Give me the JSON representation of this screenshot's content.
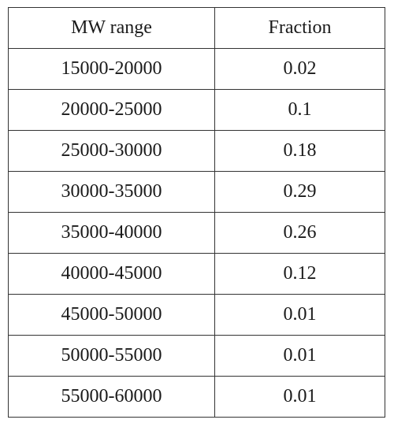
{
  "table": {
    "headers": [
      "MW range",
      "Fraction"
    ],
    "rows": [
      [
        "15000-20000",
        "0.02"
      ],
      [
        "20000-25000",
        "0.1"
      ],
      [
        "25000-30000",
        "0.18"
      ],
      [
        "30000-35000",
        "0.29"
      ],
      [
        "35000-40000",
        "0.26"
      ],
      [
        "40000-45000",
        "0.12"
      ],
      [
        "45000-50000",
        "0.01"
      ],
      [
        "50000-55000",
        "0.01"
      ],
      [
        "55000-60000",
        "0.01"
      ]
    ]
  }
}
